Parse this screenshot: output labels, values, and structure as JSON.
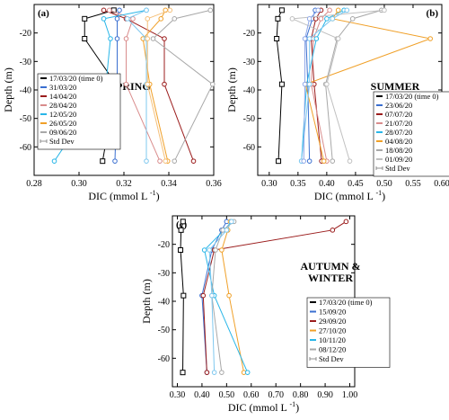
{
  "chart_data": [
    {
      "type": "line",
      "panel_label": "(a)",
      "season_title": "SPRING",
      "xlabel": "DIC (mmol L ",
      "xlabel_sup": "-1",
      "xlabel_end": ")",
      "ylabel": "Depth (m)",
      "xlim": [
        0.28,
        0.36
      ],
      "ylim": [
        -70,
        -10
      ],
      "xticks": [
        "0.28",
        "0.30",
        "0.32",
        "0.34",
        "0.36"
      ],
      "xtick_values": [
        0.28,
        0.3,
        0.32,
        0.34,
        0.36
      ],
      "yticks": [
        "-20",
        "-30",
        "-40",
        "-50",
        "-60"
      ],
      "ytick_values": [
        -20,
        -30,
        -40,
        -50,
        -60
      ],
      "legend_placement": "bottom-left",
      "series": [
        {
          "name": "17/03/20 (time 0)",
          "color": "#000000",
          "x": [
            0.3155,
            0.3025,
            0.3025,
            0.3165,
            0.3105
          ],
          "y": [
            -12,
            -15,
            -22,
            -38,
            -65
          ]
        },
        {
          "name": "31/03/20",
          "color": "#3a6fd0",
          "x": [
            0.318,
            0.317,
            0.317,
            0.317,
            0.316
          ],
          "y": [
            -12,
            -15,
            -22,
            -38,
            -65
          ]
        },
        {
          "name": "14/04/20",
          "color": "#9b1c1c",
          "x": [
            0.311,
            0.321,
            0.338,
            0.338,
            0.351
          ],
          "y": [
            -12,
            -15,
            -22,
            -38,
            -65
          ]
        },
        {
          "name": "28/04/20",
          "color": "#d98c8c",
          "x": [
            0.3135,
            0.324,
            0.321,
            0.321,
            0.336
          ],
          "y": [
            -12,
            -15,
            -22,
            -38,
            -65
          ]
        },
        {
          "name": "12/05/20",
          "color": "#29b6e8",
          "x": [
            0.33,
            0.311,
            0.314,
            0.312,
            0.289
          ],
          "y": [
            -12,
            -15,
            -22,
            -38,
            -65
          ]
        },
        {
          "name": "26/05/20",
          "color": "#f0a028",
          "x": [
            0.3385,
            0.3365,
            0.3285,
            0.3315,
            0.3395
          ],
          "y": [
            -12,
            -15,
            -22,
            -38,
            -65
          ]
        },
        {
          "name": "09/06/20",
          "color": "#a8a8a8",
          "x": [
            0.3585,
            0.3425,
            0.333,
            0.3595,
            0.3425
          ],
          "y": [
            -12,
            -15,
            -22,
            -38,
            -65
          ]
        },
        {
          "name": "",
          "color": "#7fc8ef",
          "x": [
            0.33,
            0.3215,
            0.33,
            0.33,
            0.33
          ],
          "y": [
            -12,
            -15,
            -22,
            -38,
            -65
          ]
        },
        {
          "name": "",
          "color": "#f5c07a",
          "x": [
            0.3405,
            0.3305,
            0.3305,
            0.3305,
            0.3385
          ],
          "y": [
            -12,
            -15,
            -22,
            -38,
            -65
          ]
        }
      ],
      "std_dev_label": "Std Dev"
    },
    {
      "type": "line",
      "panel_label": "(b)",
      "season_title": "SUMMER",
      "xlabel": "DIC (mmol L ",
      "xlabel_sup": "-1",
      "xlabel_end": ")",
      "ylabel": "Depth (m)",
      "xlim": [
        0.28,
        0.6
      ],
      "ylim": [
        -70,
        -10
      ],
      "xticks": [
        "0.30",
        "0.35",
        "0.40",
        "0.45",
        "0.50",
        "0.55",
        "0.60"
      ],
      "xtick_values": [
        0.3,
        0.35,
        0.4,
        0.45,
        0.5,
        0.55,
        0.6
      ],
      "yticks": [
        "-20",
        "-30",
        "-40",
        "-50",
        "-60"
      ],
      "ytick_values": [
        -20,
        -30,
        -40,
        -50,
        -60
      ],
      "legend_placement": "bottom-right",
      "series": [
        {
          "name": "17/03/20 (time 0)",
          "color": "#000000",
          "x": [
            0.322,
            0.315,
            0.313,
            0.322,
            0.316
          ],
          "y": [
            -12,
            -15,
            -22,
            -38,
            -65
          ]
        },
        {
          "name": "23/06/20",
          "color": "#3a6fd0",
          "x": [
            0.38,
            0.375,
            0.364,
            0.367,
            0.37
          ],
          "y": [
            -12,
            -15,
            -22,
            -38,
            -65
          ]
        },
        {
          "name": "07/07/20",
          "color": "#9b1c1c",
          "x": [
            0.39,
            0.381,
            0.373,
            0.378,
            0.391
          ],
          "y": [
            -12,
            -15,
            -22,
            -38,
            -65
          ]
        },
        {
          "name": "21/07/20",
          "color": "#d98c8c",
          "x": [
            0.405,
            0.39,
            0.377,
            0.373,
            0.4
          ],
          "y": [
            -12,
            -15,
            -22,
            -38,
            -65
          ]
        },
        {
          "name": "28/07/20",
          "color": "#29b6e8",
          "x": [
            0.43,
            0.4,
            0.382,
            0.365,
            0.356
          ],
          "y": [
            -12,
            -15,
            -22,
            -38,
            -65
          ]
        },
        {
          "name": "04/08/20",
          "color": "#f0a028",
          "x": [
            0.42,
            0.41,
            0.58,
            0.363,
            0.395
          ],
          "y": [
            -12,
            -15,
            -22,
            -38,
            -65
          ]
        },
        {
          "name": "18/08/20",
          "color": "#a8a8a8",
          "x": [
            0.495,
            0.445,
            0.418,
            0.398,
            0.41
          ],
          "y": [
            -12,
            -15,
            -22,
            -38,
            -65
          ]
        },
        {
          "name": "01/09/20",
          "color": "#c0c0c0",
          "x": [
            0.5,
            0.34,
            0.42,
            0.4,
            0.44
          ],
          "y": [
            -12,
            -15,
            -22,
            -38,
            -65
          ]
        },
        {
          "name": "",
          "color": "#7fc8ef",
          "x": [
            0.435,
            0.41,
            0.37,
            0.37,
            0.356
          ],
          "y": [
            -12,
            -15,
            -22,
            -38,
            -65
          ]
        },
        {
          "name": "",
          "color": "#8fa8e8",
          "x": [
            0.385,
            0.37,
            0.362,
            0.362,
            0.36
          ],
          "y": [
            -12,
            -15,
            -22,
            -38,
            -65
          ]
        }
      ],
      "std_dev_label": "Std Dev"
    },
    {
      "type": "line",
      "panel_label": "(c)",
      "season_title": "AUTUMN &",
      "season_title_2": "WINTER",
      "xlabel": "DIC (mmol L ",
      "xlabel_sup": "-1",
      "xlabel_end": ")",
      "ylabel": "Depth (m)",
      "xlim": [
        0.28,
        1.02
      ],
      "ylim": [
        -70,
        -10
      ],
      "xticks": [
        "0.30",
        "0.40",
        "0.50",
        "0.60",
        "0.70",
        "0.80",
        "0.90",
        "1.00"
      ],
      "xtick_values": [
        0.3,
        0.4,
        0.5,
        0.6,
        0.7,
        0.8,
        0.9,
        1.0
      ],
      "yticks": [
        "-20",
        "-30",
        "-40",
        "-50",
        "-60"
      ],
      "ytick_values": [
        -20,
        -30,
        -40,
        -50,
        -60
      ],
      "legend_placement": "bottom-right",
      "series": [
        {
          "name": "17/03/20 (time 0)",
          "color": "#000000",
          "x": [
            0.323,
            0.315,
            0.313,
            0.325,
            0.322
          ],
          "y": [
            -12,
            -15,
            -22,
            -38,
            -65
          ]
        },
        {
          "name": "15/09/20",
          "color": "#3a6fd0",
          "x": [
            0.5,
            0.48,
            0.44,
            0.4,
            0.42
          ],
          "y": [
            -12,
            -15,
            -22,
            -38,
            -65
          ]
        },
        {
          "name": "29/09/20",
          "color": "#9b1c1c",
          "x": [
            0.985,
            0.93,
            0.45,
            0.405,
            0.42
          ],
          "y": [
            -12,
            -15,
            -22,
            -38,
            -65
          ]
        },
        {
          "name": "27/10/20",
          "color": "#f0a028",
          "x": [
            0.515,
            0.505,
            0.48,
            0.51,
            0.57
          ],
          "y": [
            -12,
            -15,
            -22,
            -38,
            -65
          ]
        },
        {
          "name": "10/11/20",
          "color": "#29b6e8",
          "x": [
            0.52,
            0.49,
            0.41,
            0.45,
            0.585
          ],
          "y": [
            -12,
            -15,
            -22,
            -38,
            -65
          ]
        },
        {
          "name": "08/12/20",
          "color": "#a8a8a8",
          "x": [
            0.53,
            0.485,
            0.455,
            0.44,
            0.48
          ],
          "y": [
            -12,
            -15,
            -22,
            -38,
            -65
          ]
        },
        {
          "name": "",
          "color": "#7fc8ef",
          "x": [
            0.52,
            0.5,
            0.43,
            0.44,
            0.45
          ],
          "y": [
            -12,
            -15,
            -22,
            -38,
            -65
          ]
        }
      ],
      "std_dev_label": "Std Dev"
    }
  ]
}
